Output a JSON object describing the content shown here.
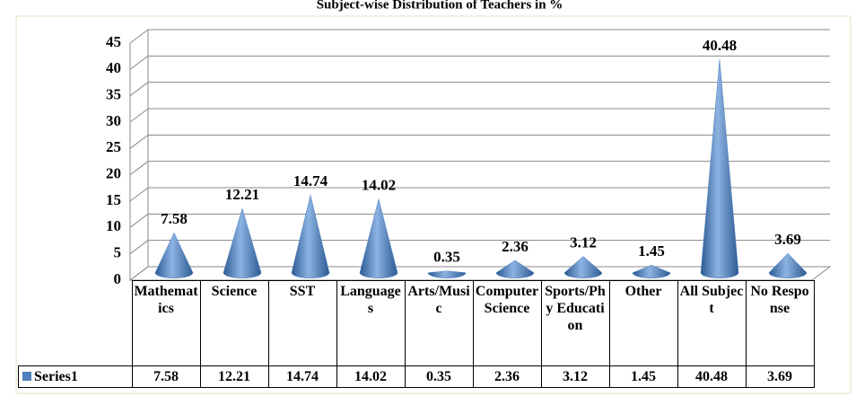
{
  "chart_data": {
    "type": "cone3d",
    "title": "Subject-wise Distribution of Teachers in %",
    "categories": [
      "Mathematics",
      "Science",
      "SST",
      "Languages",
      "Arts/Music",
      "Computer Science",
      "Sports/Phy Education",
      "Other",
      "All Subject",
      "No Response"
    ],
    "series": [
      {
        "name": "Series1",
        "color": "#4f81bd",
        "values": [
          7.58,
          12.21,
          14.74,
          14.02,
          0.35,
          2.36,
          3.12,
          1.45,
          40.48,
          3.69
        ]
      }
    ],
    "ylim": [
      0,
      45
    ],
    "yticks": [
      0,
      5,
      10,
      15,
      20,
      25,
      30,
      35,
      40,
      45
    ],
    "grid": true,
    "legend": "bottom"
  }
}
